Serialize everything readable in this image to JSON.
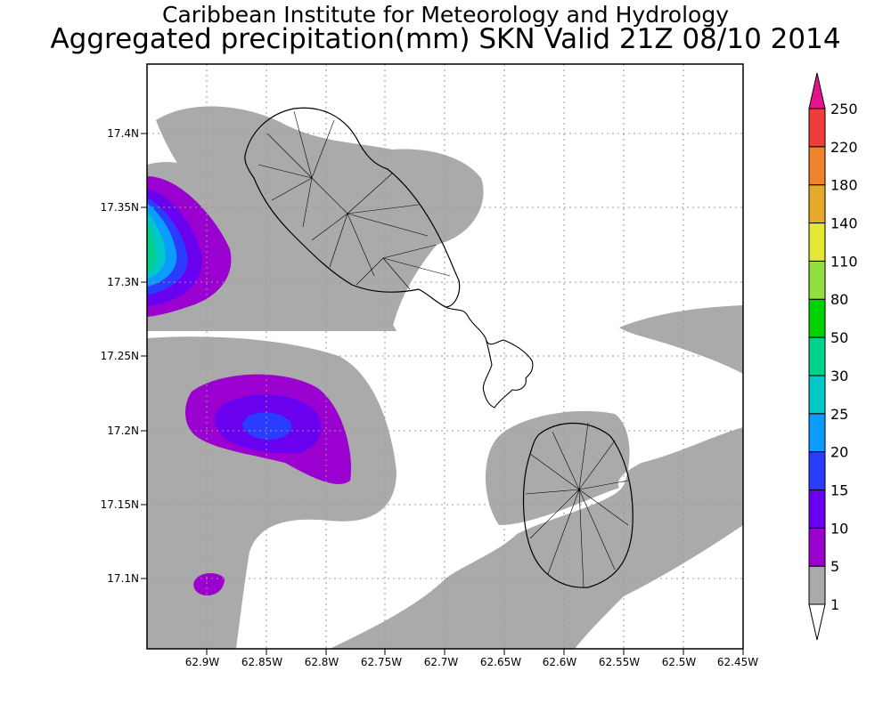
{
  "title": {
    "line1": "Caribbean Institute for Meteorology and Hydrology",
    "line2": "Aggregated precipitation(mm) SKN Valid 21Z 08/10 2014"
  },
  "map": {
    "region": "St. Kitts and Nevis",
    "lon_ticks": [
      "62.9W",
      "62.85W",
      "62.8W",
      "62.75W",
      "62.7W",
      "62.65W",
      "62.6W",
      "62.55W",
      "62.5W",
      "62.45W"
    ],
    "lat_ticks": [
      "17.4N",
      "17.35N",
      "17.3N",
      "17.25N",
      "17.2N",
      "17.15N",
      "17.1N"
    ],
    "grid": "dotted"
  },
  "colorbar": {
    "levels": [
      "1",
      "5",
      "10",
      "15",
      "20",
      "25",
      "30",
      "50",
      "80",
      "110",
      "140",
      "180",
      "220",
      "250"
    ],
    "colors": [
      "#ffffff",
      "#aaaaaa",
      "#9a00d0",
      "#6a00f0",
      "#2a3cff",
      "#0a9cff",
      "#00c8c8",
      "#00d28c",
      "#00d200",
      "#90e040",
      "#e6e634",
      "#e6aa2a",
      "#f0822a",
      "#f03c3c",
      "#e6148c"
    ]
  }
}
